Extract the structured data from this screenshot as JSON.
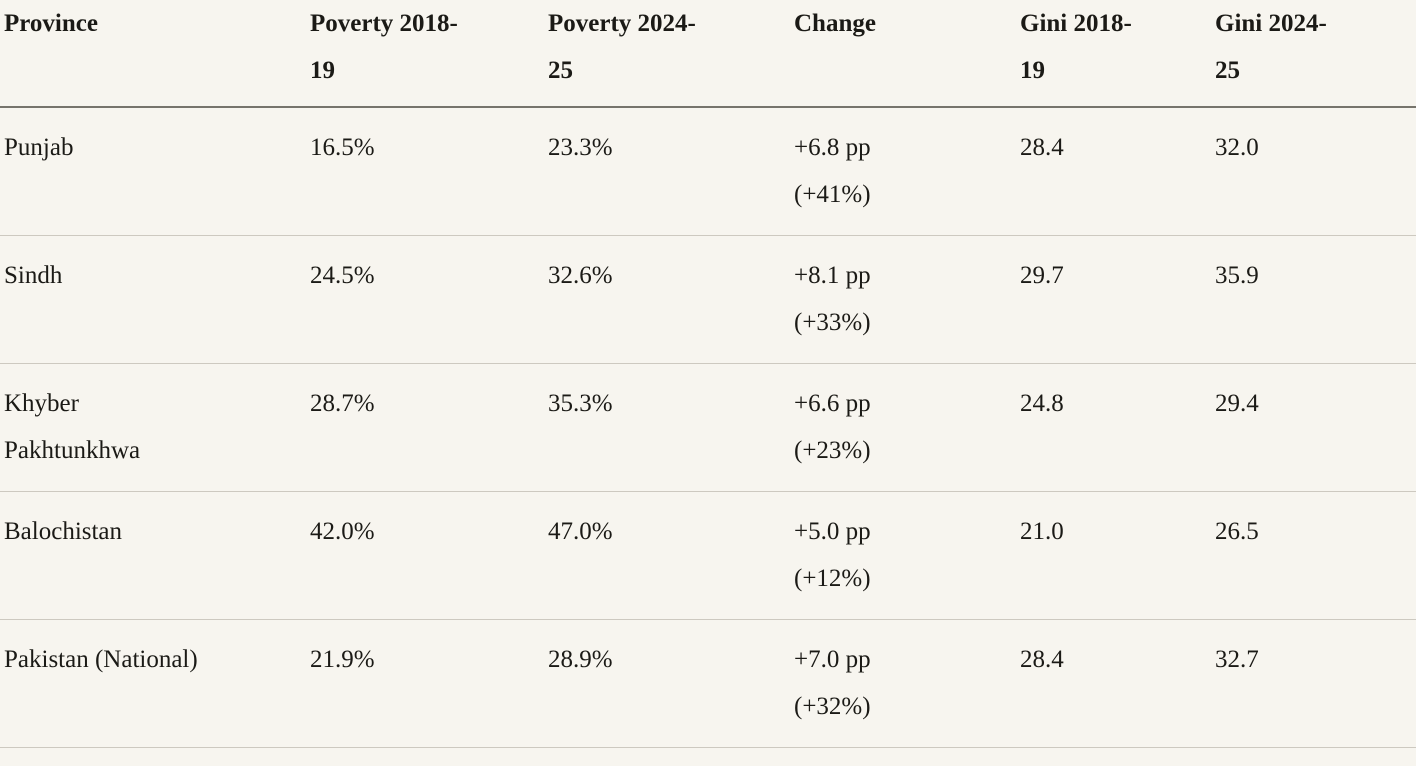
{
  "colors": {
    "background": "#f7f5ef",
    "text": "#1b1a16",
    "header_border": "#76746c",
    "row_border": "#cdc9c0"
  },
  "table": {
    "columns": [
      {
        "key": "province",
        "label": "Province"
      },
      {
        "key": "poverty_2018_19",
        "label": "Poverty 2018-\n19"
      },
      {
        "key": "poverty_2024_25",
        "label": "Poverty 2024-\n25"
      },
      {
        "key": "change",
        "label": "Change"
      },
      {
        "key": "gini_2018_19",
        "label": "Gini 2018-\n19"
      },
      {
        "key": "gini_2024_25",
        "label": "Gini 2024-\n25"
      }
    ],
    "rows": [
      {
        "province": "Punjab",
        "poverty_2018_19": "16.5%",
        "poverty_2024_25": "23.3%",
        "change": "+6.8 pp\n(+41%)",
        "gini_2018_19": "28.4",
        "gini_2024_25": "32.0"
      },
      {
        "province": "Sindh",
        "poverty_2018_19": "24.5%",
        "poverty_2024_25": "32.6%",
        "change": "+8.1 pp\n(+33%)",
        "gini_2018_19": "29.7",
        "gini_2024_25": "35.9"
      },
      {
        "province": "Khyber\nPakhtunkhwa",
        "poverty_2018_19": "28.7%",
        "poverty_2024_25": "35.3%",
        "change": "+6.6 pp\n(+23%)",
        "gini_2018_19": "24.8",
        "gini_2024_25": "29.4"
      },
      {
        "province": "Balochistan",
        "poverty_2018_19": "42.0%",
        "poverty_2024_25": "47.0%",
        "change": "+5.0 pp\n(+12%)",
        "gini_2018_19": "21.0",
        "gini_2024_25": "26.5"
      },
      {
        "province": "Pakistan (National)",
        "poverty_2018_19": "21.9%",
        "poverty_2024_25": "28.9%",
        "change": "+7.0 pp\n(+32%)",
        "gini_2018_19": "28.4",
        "gini_2024_25": "32.7"
      }
    ]
  }
}
